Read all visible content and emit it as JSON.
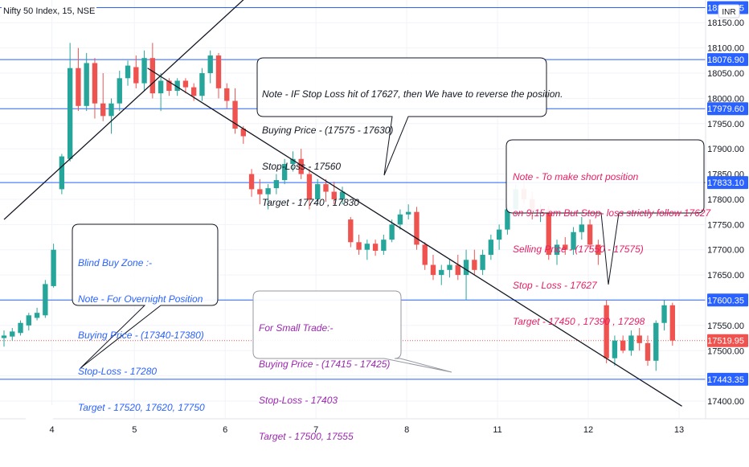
{
  "header": {
    "symbol_line": "Nifty 50 Index, 15, NSE",
    "currency_badge": "INR"
  },
  "chart_data": {
    "type": "candlestick",
    "title": "Nifty 50 Index, 15, NSE",
    "ylim": [
      17365,
      18195
    ],
    "grid": true,
    "x_tick_labels": [
      "4",
      "5",
      "6",
      "7",
      "8",
      "11",
      "12",
      "13"
    ],
    "y_tick_labels": [
      "17400.00",
      "17450.00",
      "17500.00",
      "17550.00",
      "17600.00",
      "17650.00",
      "17700.00",
      "17750.00",
      "17800.00",
      "17850.00",
      "17900.00",
      "17950.00",
      "18000.00",
      "18050.00",
      "18100.00",
      "18150.00"
    ],
    "y_ticks": [
      17400,
      17450,
      17500,
      17550,
      17600,
      17650,
      17700,
      17750,
      17800,
      17850,
      17900,
      17950,
      18000,
      18050,
      18100,
      18150
    ],
    "horizontal_levels": [
      {
        "value": 18179.95,
        "label": "18179.95"
      },
      {
        "value": 18076.9,
        "label": "18076.90"
      },
      {
        "value": 17979.6,
        "label": "17979.60"
      },
      {
        "value": 17833.1,
        "label": "17833.10"
      },
      {
        "value": 17600.35,
        "label": "17600.35"
      },
      {
        "value": 17443.35,
        "label": "17443.35"
      }
    ],
    "last_price": {
      "value": 17519.95,
      "label": "17519.95"
    },
    "trendlines": [
      {
        "from": [
          0,
          17760
        ],
        "to": [
          25,
          18210
        ],
        "color": "#131722"
      },
      {
        "from": [
          14.5,
          18060
        ],
        "to": [
          68.5,
          17390
        ],
        "color": "#131722"
      }
    ],
    "candles": [
      [
        17525,
        17540,
        17508,
        17530
      ],
      [
        17528,
        17545,
        17520,
        17538
      ],
      [
        17535,
        17560,
        17530,
        17555
      ],
      [
        17550,
        17575,
        17540,
        17570
      ],
      [
        17565,
        17585,
        17560,
        17575
      ],
      [
        17570,
        17640,
        17565,
        17632
      ],
      [
        17628,
        17712,
        17625,
        17700
      ],
      [
        17820,
        17890,
        17810,
        17885
      ],
      [
        17880,
        18110,
        17875,
        18060
      ],
      [
        18060,
        18100,
        17975,
        17985
      ],
      [
        17985,
        18090,
        17975,
        18070
      ],
      [
        18070,
        18080,
        17960,
        17990
      ],
      [
        17990,
        18050,
        17955,
        17965
      ],
      [
        17965,
        18000,
        17930,
        17990
      ],
      [
        17990,
        18055,
        17975,
        18040
      ],
      [
        18040,
        18075,
        18025,
        18065
      ],
      [
        18062,
        18085,
        18020,
        18030
      ],
      [
        18030,
        18095,
        18015,
        18080
      ],
      [
        18080,
        18110,
        18000,
        18010
      ],
      [
        18010,
        18050,
        17975,
        18035
      ],
      [
        18035,
        18040,
        18005,
        18015
      ],
      [
        18015,
        18040,
        18005,
        18035
      ],
      [
        18035,
        18040,
        18010,
        18022
      ],
      [
        18022,
        18030,
        17995,
        18005
      ],
      [
        18005,
        18060,
        17995,
        18050
      ],
      [
        18050,
        18095,
        18030,
        18085
      ],
      [
        18085,
        18090,
        18000,
        18020
      ],
      [
        18020,
        18030,
        17980,
        17995
      ],
      [
        17995,
        18020,
        17930,
        17940
      ],
      [
        17940,
        17945,
        17910,
        17925
      ],
      [
        17850,
        17860,
        17805,
        17820
      ],
      [
        17820,
        17840,
        17790,
        17810
      ],
      [
        17810,
        17830,
        17780,
        17822
      ],
      [
        17822,
        17850,
        17810,
        17838
      ],
      [
        17838,
        17880,
        17830,
        17870
      ],
      [
        17870,
        17895,
        17855,
        17880
      ],
      [
        17880,
        17900,
        17840,
        17850
      ],
      [
        17850,
        17860,
        17780,
        17800
      ],
      [
        17800,
        17840,
        17790,
        17830
      ],
      [
        17830,
        17840,
        17795,
        17815
      ],
      [
        17815,
        17835,
        17790,
        17800
      ],
      [
        17800,
        17825,
        17790,
        17815
      ],
      [
        17760,
        17765,
        17705,
        17715
      ],
      [
        17715,
        17730,
        17690,
        17700
      ],
      [
        17700,
        17720,
        17680,
        17712
      ],
      [
        17712,
        17720,
        17688,
        17698
      ],
      [
        17698,
        17730,
        17690,
        17720
      ],
      [
        17720,
        17760,
        17715,
        17750
      ],
      [
        17750,
        17780,
        17740,
        17770
      ],
      [
        17770,
        17790,
        17760,
        17775
      ],
      [
        17775,
        17785,
        17700,
        17710
      ],
      [
        17710,
        17715,
        17660,
        17670
      ],
      [
        17670,
        17690,
        17640,
        17650
      ],
      [
        17650,
        17670,
        17630,
        17660
      ],
      [
        17660,
        17680,
        17645,
        17670
      ],
      [
        17670,
        17690,
        17640,
        17650
      ],
      [
        17650,
        17700,
        17600,
        17680
      ],
      [
        17680,
        17700,
        17650,
        17660
      ],
      [
        17660,
        17700,
        17650,
        17690
      ],
      [
        17690,
        17730,
        17680,
        17720
      ],
      [
        17720,
        17750,
        17700,
        17740
      ],
      [
        17740,
        17790,
        17730,
        17780
      ],
      [
        17780,
        17830,
        17770,
        17820
      ],
      [
        17820,
        17840,
        17790,
        17800
      ],
      [
        17800,
        17815,
        17760,
        17775
      ],
      [
        17775,
        17790,
        17755,
        17780
      ],
      [
        17780,
        17785,
        17680,
        17690
      ],
      [
        17690,
        17720,
        17670,
        17710
      ],
      [
        17710,
        17725,
        17690,
        17700
      ],
      [
        17700,
        17745,
        17690,
        17735
      ],
      [
        17735,
        17765,
        17720,
        17750
      ],
      [
        17750,
        17760,
        17700,
        17710
      ],
      [
        17710,
        17720,
        17670,
        17690
      ],
      [
        17590,
        17600,
        17475,
        17485
      ],
      [
        17485,
        17530,
        17470,
        17520
      ],
      [
        17520,
        17530,
        17495,
        17500
      ],
      [
        17500,
        17540,
        17490,
        17530
      ],
      [
        17530,
        17545,
        17500,
        17515
      ],
      [
        17515,
        17530,
        17470,
        17480
      ],
      [
        17480,
        17560,
        17460,
        17555
      ],
      [
        17555,
        17600,
        17540,
        17590
      ],
      [
        17590,
        17595,
        17510,
        17519.95
      ]
    ]
  },
  "notes": [
    {
      "lines": [
        "Note - IF Stop Loss hit of 17627, then We have to reverse the position.",
        "Buying Price - (17575 - 17630)",
        "Stop-Loss - 17560",
        "Target - 17740 , 17830"
      ],
      "color": "#131722"
    },
    {
      "lines": [
        "Note - To make short position",
        "on 9:15 am But Stop- loss strictly follow 17627",
        "Selling Price - (17550 - 17575)",
        "Stop - Loss - 17627",
        "Target - 17450 , 17390 , 17298"
      ],
      "color": "#e91e63"
    },
    {
      "lines": [
        "Blind Buy Zone :-",
        "Note - For Overnight Position",
        "Buying Price - (17340-17380)",
        "Stop-Loss - 17280",
        "Target - 17520, 17620, 17750"
      ],
      "color": "#2962ff"
    },
    {
      "lines": [
        "For Small Trade:-",
        "Buying Price - (17415 - 17425)",
        "Stop-Loss - 17403",
        "Target - 17500, 17555"
      ],
      "color": "#9c27b0"
    }
  ],
  "colors": {
    "up": "#26a69a",
    "down": "#ef5350",
    "level_line": "#2962ff",
    "label_bg": "#2962ff",
    "last_price": "#ef5350",
    "grid": "#f0f3fa"
  }
}
